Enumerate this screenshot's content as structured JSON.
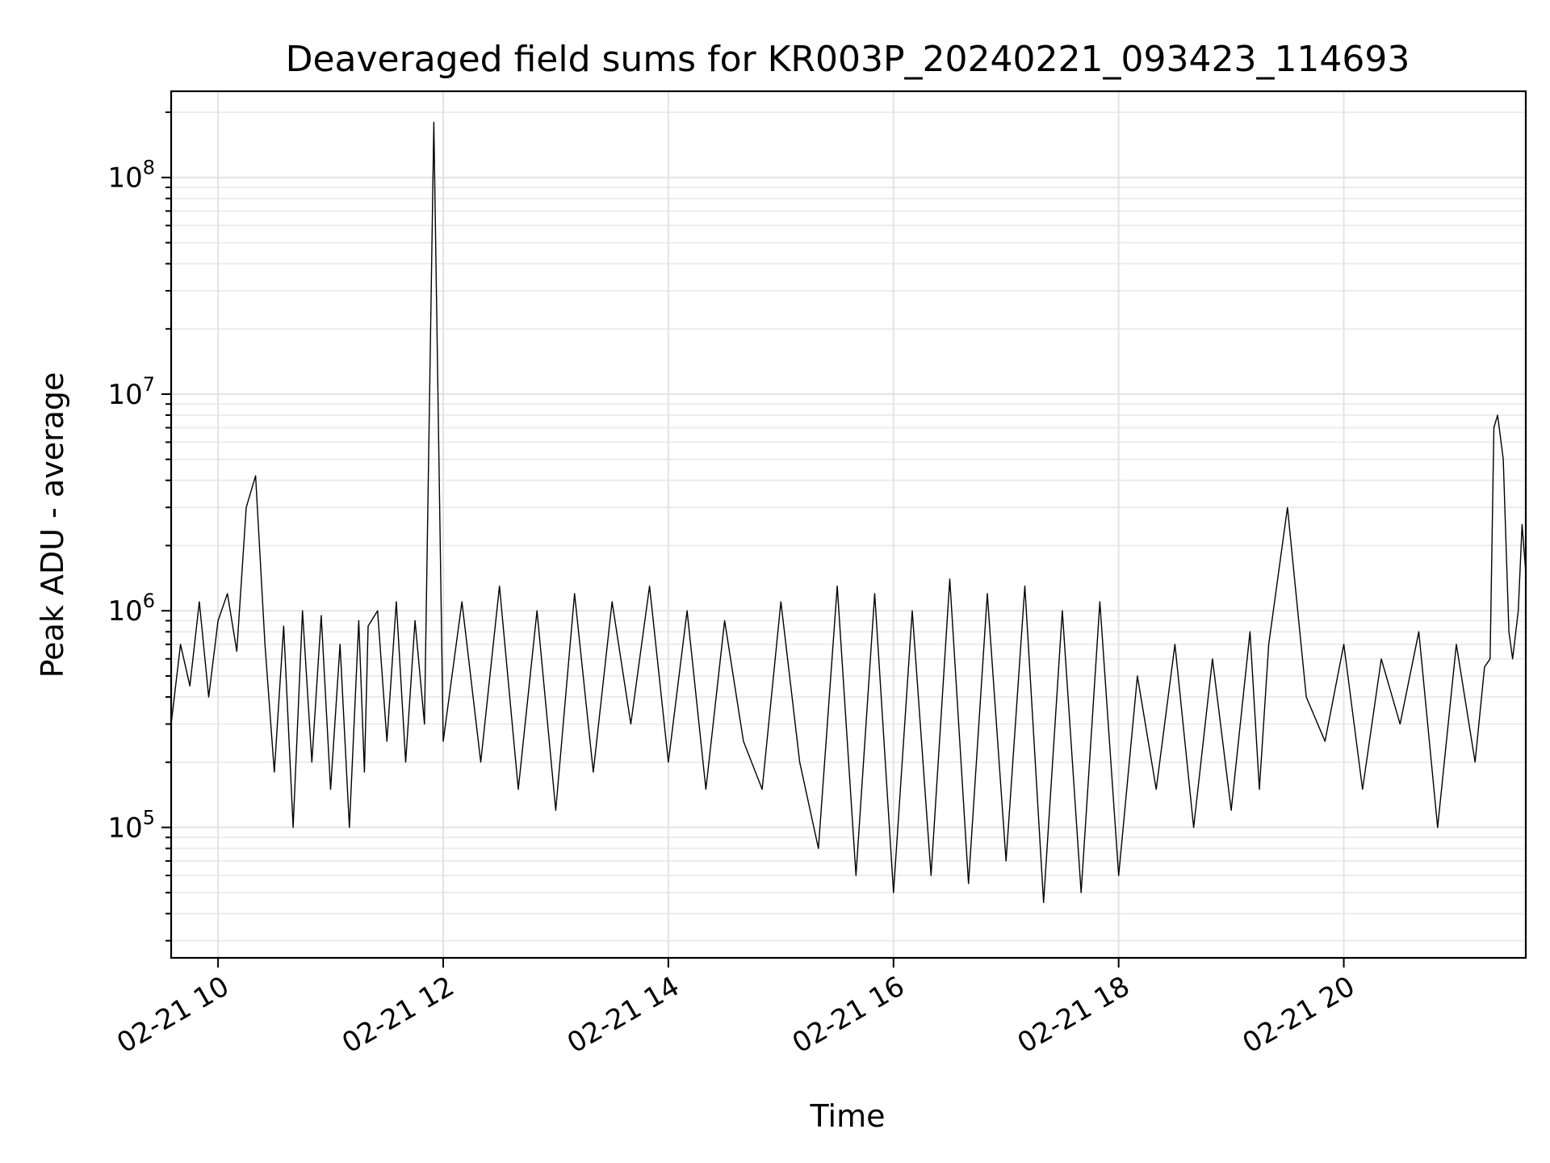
{
  "chart_data": {
    "type": "line",
    "title": "Deaveraged field sums for KR003P_20240221_093423_114693",
    "xlabel": "Time",
    "ylabel": "Peak ADU - average",
    "y_scale": "log",
    "ylim": [
      25000,
      250000000
    ],
    "xlim": [
      "2024-02-21T09:35",
      "2024-02-21T21:37"
    ],
    "grid": true,
    "legend": "none",
    "x_ticks": [
      {
        "label": "02-21 10",
        "t": "2024-02-21T10:00"
      },
      {
        "label": "02-21 12",
        "t": "2024-02-21T12:00"
      },
      {
        "label": "02-21 14",
        "t": "2024-02-21T14:00"
      },
      {
        "label": "02-21 16",
        "t": "2024-02-21T16:00"
      },
      {
        "label": "02-21 18",
        "t": "2024-02-21T18:00"
      },
      {
        "label": "02-21 20",
        "t": "2024-02-21T20:00"
      }
    ],
    "y_ticks": [
      {
        "base": "10",
        "exp": "5",
        "value": 100000
      },
      {
        "base": "10",
        "exp": "6",
        "value": 1000000
      },
      {
        "base": "10",
        "exp": "7",
        "value": 10000000
      },
      {
        "base": "10",
        "exp": "8",
        "value": 100000000
      }
    ],
    "series": [
      {
        "color": "#000000",
        "x": [
          "2024-02-21T09:35",
          "2024-02-21T09:40",
          "2024-02-21T09:45",
          "2024-02-21T09:50",
          "2024-02-21T09:55",
          "2024-02-21T10:00",
          "2024-02-21T10:05",
          "2024-02-21T10:10",
          "2024-02-21T10:15",
          "2024-02-21T10:20",
          "2024-02-21T10:25",
          "2024-02-21T10:30",
          "2024-02-21T10:35",
          "2024-02-21T10:40",
          "2024-02-21T10:45",
          "2024-02-21T10:50",
          "2024-02-21T10:55",
          "2024-02-21T11:00",
          "2024-02-21T11:05",
          "2024-02-21T11:10",
          "2024-02-21T11:15",
          "2024-02-21T11:18",
          "2024-02-21T11:20",
          "2024-02-21T11:25",
          "2024-02-21T11:30",
          "2024-02-21T11:35",
          "2024-02-21T11:40",
          "2024-02-21T11:45",
          "2024-02-21T11:50",
          "2024-02-21T11:55",
          "2024-02-21T12:00",
          "2024-02-21T12:10",
          "2024-02-21T12:20",
          "2024-02-21T12:30",
          "2024-02-21T12:40",
          "2024-02-21T12:50",
          "2024-02-21T13:00",
          "2024-02-21T13:10",
          "2024-02-21T13:20",
          "2024-02-21T13:30",
          "2024-02-21T13:40",
          "2024-02-21T13:50",
          "2024-02-21T14:00",
          "2024-02-21T14:10",
          "2024-02-21T14:20",
          "2024-02-21T14:30",
          "2024-02-21T14:40",
          "2024-02-21T14:50",
          "2024-02-21T15:00",
          "2024-02-21T15:10",
          "2024-02-21T15:20",
          "2024-02-21T15:30",
          "2024-02-21T15:40",
          "2024-02-21T15:50",
          "2024-02-21T16:00",
          "2024-02-21T16:10",
          "2024-02-21T16:20",
          "2024-02-21T16:30",
          "2024-02-21T16:40",
          "2024-02-21T16:50",
          "2024-02-21T17:00",
          "2024-02-21T17:10",
          "2024-02-21T17:20",
          "2024-02-21T17:30",
          "2024-02-21T17:40",
          "2024-02-21T17:50",
          "2024-02-21T18:00",
          "2024-02-21T18:10",
          "2024-02-21T18:20",
          "2024-02-21T18:30",
          "2024-02-21T18:40",
          "2024-02-21T18:50",
          "2024-02-21T19:00",
          "2024-02-21T19:10",
          "2024-02-21T19:15",
          "2024-02-21T19:20",
          "2024-02-21T19:30",
          "2024-02-21T19:40",
          "2024-02-21T19:50",
          "2024-02-21T20:00",
          "2024-02-21T20:10",
          "2024-02-21T20:20",
          "2024-02-21T20:30",
          "2024-02-21T20:40",
          "2024-02-21T20:50",
          "2024-02-21T21:00",
          "2024-02-21T21:10",
          "2024-02-21T21:15",
          "2024-02-21T21:18",
          "2024-02-21T21:20",
          "2024-02-21T21:22",
          "2024-02-21T21:25",
          "2024-02-21T21:28",
          "2024-02-21T21:30",
          "2024-02-21T21:33",
          "2024-02-21T21:35",
          "2024-02-21T21:37"
        ],
        "y": [
          300000,
          700000,
          450000,
          1100000,
          400000,
          900000,
          1200000,
          650000,
          3000000,
          4200000,
          700000,
          180000,
          850000,
          100000,
          1000000,
          200000,
          950000,
          150000,
          700000,
          100000,
          900000,
          180000,
          850000,
          1000000,
          250000,
          1100000,
          200000,
          900000,
          300000,
          180000000,
          250000,
          1100000,
          200000,
          1300000,
          150000,
          1000000,
          120000,
          1200000,
          180000,
          1100000,
          300000,
          1300000,
          200000,
          1000000,
          150000,
          900000,
          250000,
          150000,
          1100000,
          200000,
          80000,
          1300000,
          60000,
          1200000,
          50000,
          1000000,
          60000,
          1400000,
          55000,
          1200000,
          70000,
          1300000,
          45000,
          1000000,
          50000,
          1100000,
          60000,
          500000,
          150000,
          700000,
          100000,
          600000,
          120000,
          800000,
          150000,
          700000,
          3000000,
          400000,
          250000,
          700000,
          150000,
          600000,
          300000,
          800000,
          100000,
          700000,
          200000,
          550000,
          600000,
          7000000,
          8000000,
          5000000,
          800000,
          600000,
          1000000,
          2500000,
          1500000
        ]
      }
    ]
  }
}
